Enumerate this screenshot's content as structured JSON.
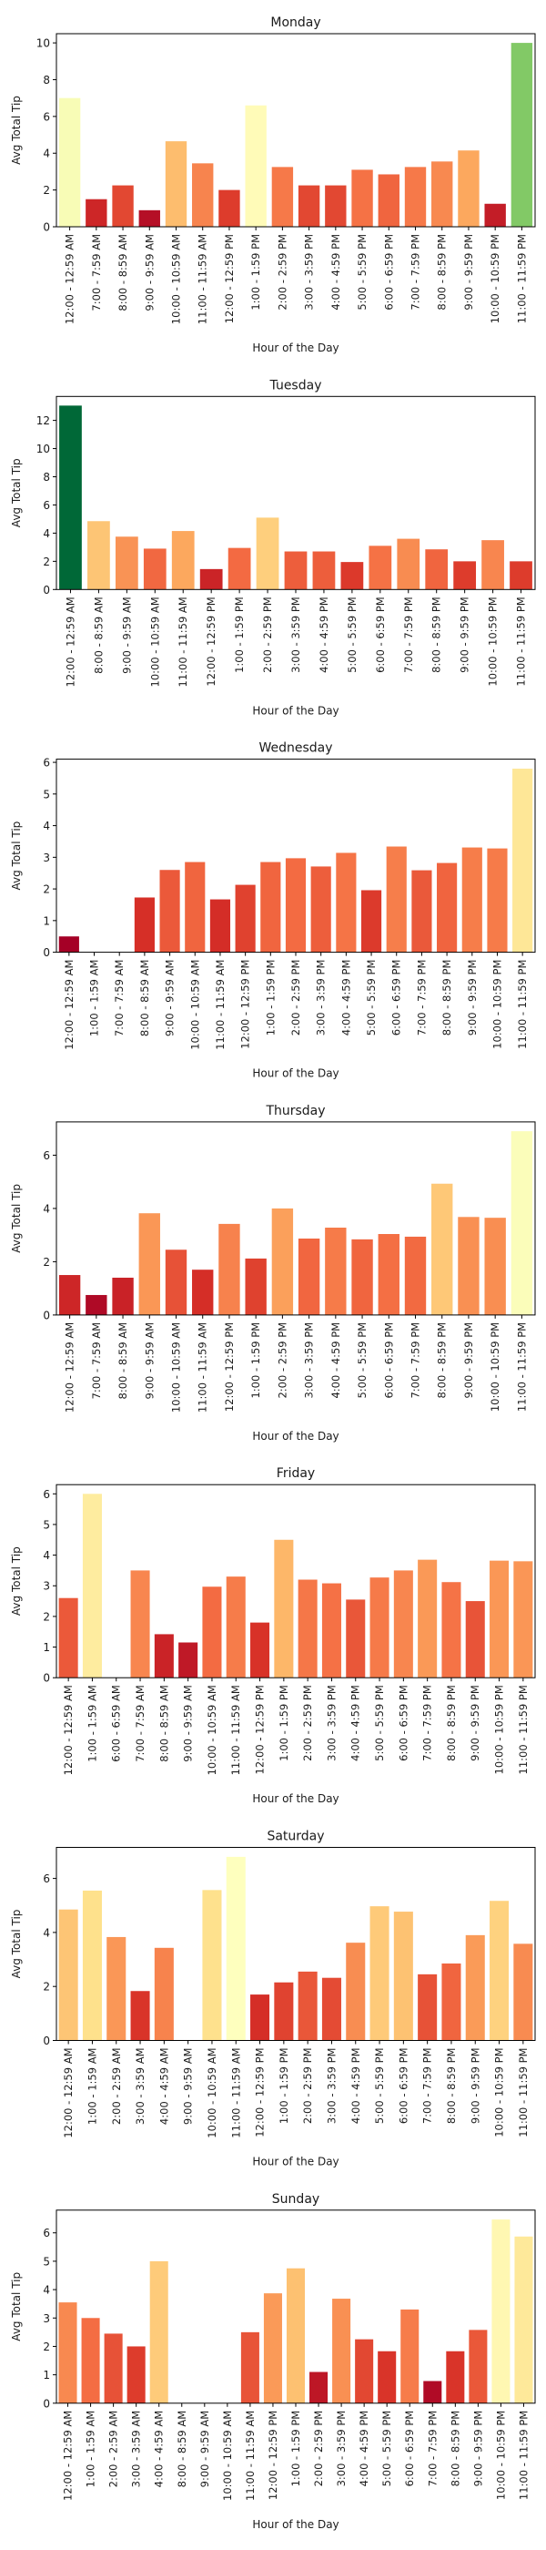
{
  "chart_data": [
    {
      "type": "bar",
      "title": "Monday",
      "xlabel": "Hour of the Day",
      "ylabel": "Avg Total Tip",
      "ylim": [
        0,
        10.5
      ],
      "yticks": [
        0,
        2,
        4,
        6,
        8,
        10
      ],
      "grid": false,
      "colormap": "RdYlGn",
      "categories": [
        "12:00 - 12:59 AM",
        "7:00 - 7:59 AM",
        "8:00 - 8:59 AM",
        "9:00 - 9:59 AM",
        "10:00 - 10:59 AM",
        "11:00 - 11:59 AM",
        "12:00 - 12:59 PM",
        "1:00 - 1:59 PM",
        "2:00 - 2:59 PM",
        "3:00 - 3:59 PM",
        "4:00 - 4:59 PM",
        "5:00 - 5:59 PM",
        "6:00 - 6:59 PM",
        "7:00 - 7:59 PM",
        "8:00 - 8:59 PM",
        "9:00 - 9:59 PM",
        "10:00 - 10:59 PM",
        "11:00 - 11:59 PM"
      ],
      "values": [
        7.0,
        1.5,
        2.25,
        0.9,
        4.65,
        3.45,
        2.0,
        6.6,
        3.25,
        2.25,
        2.25,
        3.1,
        2.85,
        3.25,
        3.55,
        4.15,
        1.25,
        10.0
      ]
    },
    {
      "type": "bar",
      "title": "Tuesday",
      "xlabel": "Hour of the Day",
      "ylabel": "Avg Total Tip",
      "ylim": [
        0,
        13.7
      ],
      "yticks": [
        0,
        2,
        4,
        6,
        8,
        10,
        12
      ],
      "grid": false,
      "colormap": "RdYlGn",
      "categories": [
        "12:00 - 12:59 AM",
        "8:00 - 8:59 AM",
        "9:00 - 9:59 AM",
        "10:00 - 10:59 AM",
        "11:00 - 11:59 AM",
        "12:00 - 12:59 PM",
        "1:00 - 1:59 PM",
        "2:00 - 2:59 PM",
        "3:00 - 3:59 PM",
        "4:00 - 4:59 PM",
        "5:00 - 5:59 PM",
        "6:00 - 6:59 PM",
        "7:00 - 7:59 PM",
        "8:00 - 8:59 PM",
        "9:00 - 9:59 PM",
        "10:00 - 10:59 PM",
        "11:00 - 11:59 PM"
      ],
      "values": [
        13.05,
        4.85,
        3.75,
        2.9,
        4.15,
        1.45,
        2.95,
        5.1,
        2.7,
        2.7,
        1.95,
        3.1,
        3.6,
        2.85,
        2.0,
        3.5,
        2.0
      ]
    },
    {
      "type": "bar",
      "title": "Wednesday",
      "xlabel": "Hour of the Day",
      "ylabel": "Avg Total Tip",
      "ylim": [
        0,
        6.1
      ],
      "yticks": [
        0,
        1,
        2,
        3,
        4,
        5,
        6
      ],
      "grid": false,
      "colormap": "RdYlGn",
      "categories": [
        "12:00 - 12:59 AM",
        "1:00 - 1:59 AM",
        "7:00 - 7:59 AM",
        "8:00 - 8:59 AM",
        "9:00 - 9:59 AM",
        "10:00 - 10:59 AM",
        "11:00 - 11:59 AM",
        "12:00 - 12:59 PM",
        "1:00 - 1:59 PM",
        "2:00 - 2:59 PM",
        "3:00 - 3:59 PM",
        "4:00 - 4:59 PM",
        "5:00 - 5:59 PM",
        "6:00 - 6:59 PM",
        "7:00 - 7:59 PM",
        "8:00 - 8:59 PM",
        "9:00 - 9:59 PM",
        "10:00 - 10:59 PM",
        "11:00 - 11:59 PM"
      ],
      "values": [
        0.5,
        0,
        0,
        1.73,
        2.6,
        2.85,
        1.67,
        2.13,
        2.85,
        2.97,
        2.71,
        3.14,
        1.96,
        3.34,
        2.59,
        2.82,
        3.31,
        3.28,
        5.8
      ]
    },
    {
      "type": "bar",
      "title": "Thursday",
      "xlabel": "Hour of the Day",
      "ylabel": "Avg Total Tip",
      "ylim": [
        0,
        7.25
      ],
      "yticks": [
        0,
        2,
        4,
        6
      ],
      "grid": false,
      "colormap": "RdYlGn",
      "categories": [
        "12:00 - 12:59 AM",
        "7:00 - 7:59 AM",
        "8:00 - 8:59 AM",
        "9:00 - 9:59 AM",
        "10:00 - 10:59 AM",
        "11:00 - 11:59 AM",
        "12:00 - 12:59 PM",
        "1:00 - 1:59 PM",
        "2:00 - 2:59 PM",
        "3:00 - 3:59 PM",
        "4:00 - 4:59 PM",
        "5:00 - 5:59 PM",
        "6:00 - 6:59 PM",
        "7:00 - 7:59 PM",
        "8:00 - 8:59 PM",
        "9:00 - 9:59 PM",
        "10:00 - 10:59 PM",
        "11:00 - 11:59 PM"
      ],
      "values": [
        1.5,
        0.75,
        1.4,
        3.82,
        2.45,
        1.7,
        3.42,
        2.12,
        4.0,
        2.87,
        3.28,
        2.84,
        3.04,
        2.94,
        4.93,
        3.68,
        3.65,
        6.9
      ]
    },
    {
      "type": "bar",
      "title": "Friday",
      "xlabel": "Hour of the Day",
      "ylabel": "Avg Total Tip",
      "ylim": [
        0,
        6.3
      ],
      "yticks": [
        0,
        1,
        2,
        3,
        4,
        5,
        6
      ],
      "grid": false,
      "colormap": "RdYlGn",
      "categories": [
        "12:00 - 12:59 AM",
        "1:00 - 1:59 AM",
        "6:00 - 6:59 AM",
        "7:00 - 7:59 AM",
        "8:00 - 8:59 AM",
        "9:00 - 9:59 AM",
        "10:00 - 10:59 AM",
        "11:00 - 11:59 AM",
        "12:00 - 12:59 PM",
        "1:00 - 1:59 PM",
        "2:00 - 2:59 PM",
        "3:00 - 3:59 PM",
        "4:00 - 4:59 PM",
        "5:00 - 5:59 PM",
        "6:00 - 6:59 PM",
        "7:00 - 7:59 PM",
        "8:00 - 8:59 PM",
        "9:00 - 9:59 PM",
        "10:00 - 10:59 PM",
        "11:00 - 11:59 PM"
      ],
      "values": [
        2.6,
        6.0,
        0,
        3.5,
        1.42,
        1.15,
        2.97,
        3.3,
        1.8,
        4.5,
        3.2,
        3.08,
        2.55,
        3.27,
        3.5,
        3.85,
        3.12,
        2.5,
        3.82,
        3.8
      ]
    },
    {
      "type": "bar",
      "title": "Saturday",
      "xlabel": "Hour of the Day",
      "ylabel": "Avg Total Tip",
      "ylim": [
        0,
        7.15
      ],
      "yticks": [
        0,
        2,
        4,
        6
      ],
      "grid": false,
      "colormap": "RdYlGn",
      "categories": [
        "12:00 - 12:59 AM",
        "1:00 - 1:59 AM",
        "2:00 - 2:59 AM",
        "3:00 - 3:59 AM",
        "4:00 - 4:59 AM",
        "9:00 - 9:59 AM",
        "10:00 - 10:59 AM",
        "11:00 - 11:59 AM",
        "12:00 - 12:59 PM",
        "1:00 - 1:59 PM",
        "2:00 - 2:59 PM",
        "3:00 - 3:59 PM",
        "4:00 - 4:59 PM",
        "5:00 - 5:59 PM",
        "6:00 - 6:59 PM",
        "7:00 - 7:59 PM",
        "8:00 - 8:59 PM",
        "9:00 - 9:59 PM",
        "10:00 - 10:59 PM",
        "11:00 - 11:59 PM"
      ],
      "values": [
        4.85,
        5.55,
        3.83,
        1.83,
        3.43,
        0,
        5.57,
        6.8,
        1.7,
        2.15,
        2.55,
        2.32,
        3.62,
        4.97,
        4.77,
        2.45,
        2.85,
        3.9,
        5.17,
        3.58
      ]
    },
    {
      "type": "bar",
      "title": "Sunday",
      "xlabel": "Hour of the Day",
      "ylabel": "Avg Total Tip",
      "ylim": [
        0,
        6.8
      ],
      "yticks": [
        0,
        1,
        2,
        3,
        4,
        5,
        6
      ],
      "grid": false,
      "colormap": "RdYlGn",
      "categories": [
        "12:00 - 12:59 AM",
        "1:00 - 1:59 AM",
        "2:00 - 2:59 AM",
        "3:00 - 3:59 AM",
        "4:00 - 4:59 AM",
        "8:00 - 8:59 AM",
        "9:00 - 9:59 AM",
        "10:00 - 10:59 AM",
        "11:00 - 11:59 AM",
        "12:00 - 12:59 PM",
        "1:00 - 1:59 PM",
        "2:00 - 2:59 PM",
        "3:00 - 3:59 PM",
        "4:00 - 4:59 PM",
        "5:00 - 5:59 PM",
        "6:00 - 6:59 PM",
        "7:00 - 7:59 PM",
        "8:00 - 8:59 PM",
        "9:00 - 9:59 PM",
        "10:00 - 10:59 PM",
        "11:00 - 11:59 PM"
      ],
      "values": [
        3.55,
        3.0,
        2.45,
        2.0,
        5.0,
        0,
        0,
        0,
        2.5,
        3.87,
        4.75,
        1.1,
        3.68,
        2.25,
        1.83,
        3.3,
        0.78,
        1.83,
        2.58,
        6.47,
        5.87
      ]
    }
  ]
}
